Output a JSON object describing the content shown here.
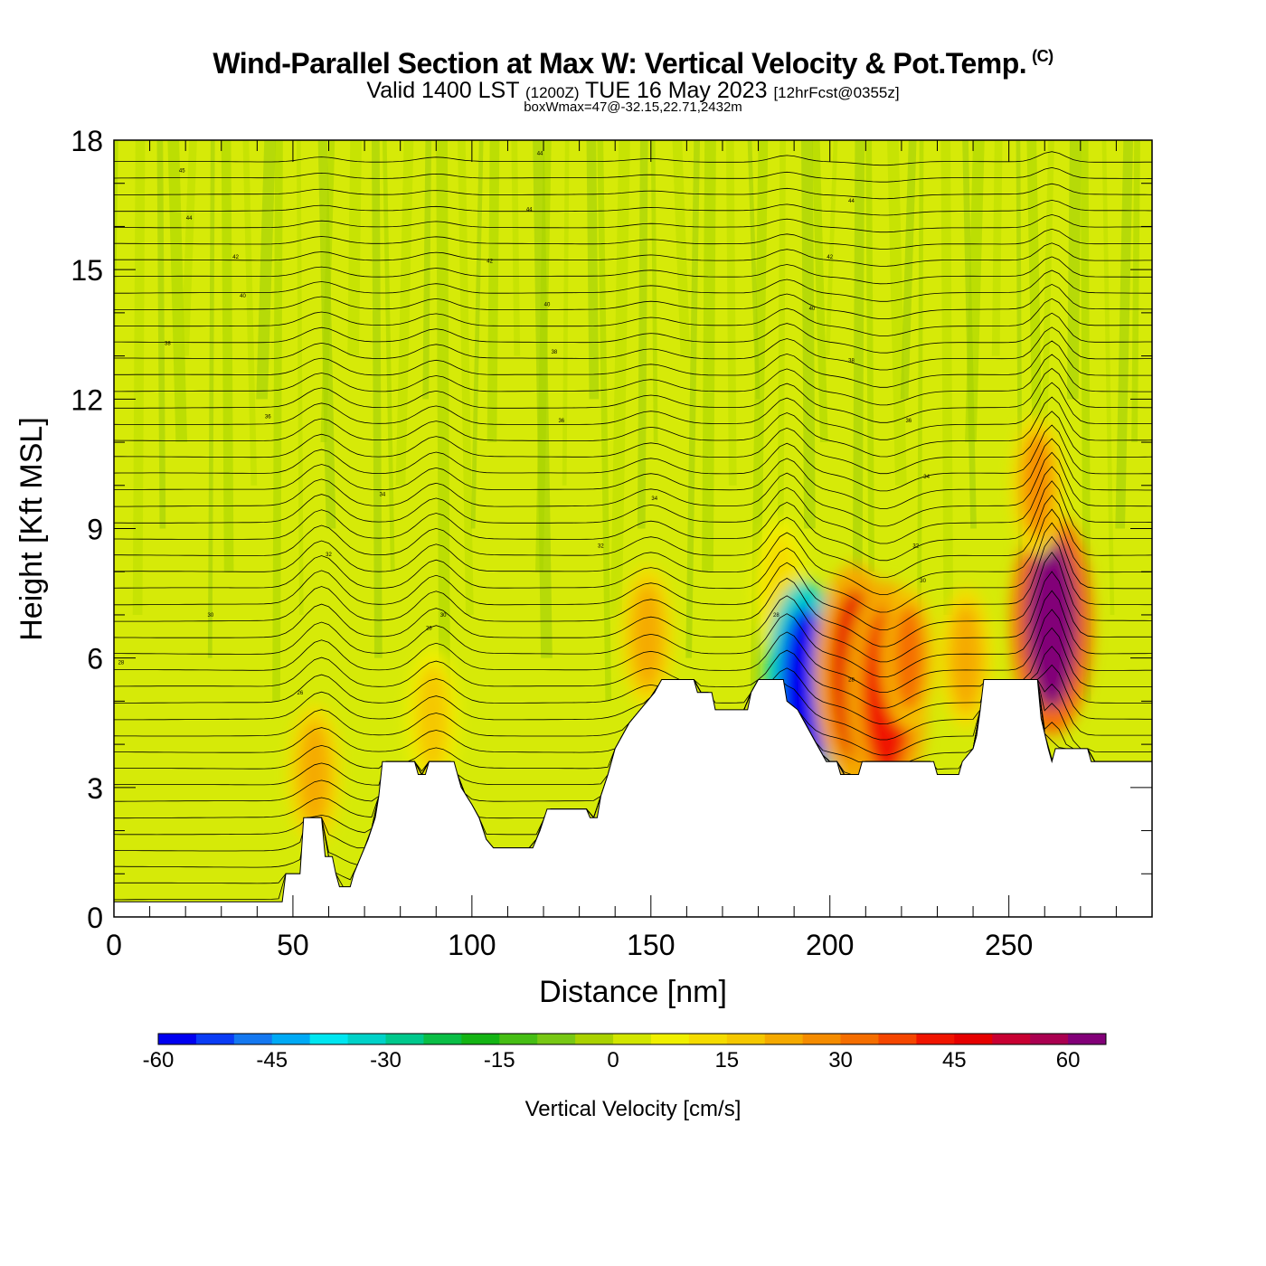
{
  "header": {
    "title_main": "Wind-Parallel Section at Max W: Vertical Velocity & Pot.Temp.",
    "title_copyright": "(C)",
    "subtitle_valid": "Valid 1400 LST",
    "subtitle_z": "(1200Z)",
    "subtitle_date": "TUE 16 May 2023",
    "subtitle_fcst": "[12hrFcst@0355z]",
    "subtitle_box": "boxWmax=47@-32.15,22.71,2432m"
  },
  "chart_data": {
    "type": "heatmap",
    "xlabel": "Distance [nm]",
    "ylabel": "Height [Kft MSL]",
    "xlim": [
      0,
      290
    ],
    "ylim": [
      0,
      18
    ],
    "x_ticks": [
      0,
      50,
      100,
      150,
      200,
      250
    ],
    "y_ticks": [
      0,
      3,
      6,
      9,
      12,
      15,
      18
    ],
    "colorbar": {
      "label": "Vertical Velocity [cm/s]",
      "range": [
        -60,
        65
      ],
      "step": 5,
      "tick_values": [
        -60,
        -45,
        -30,
        -15,
        0,
        15,
        30,
        45,
        60
      ],
      "colors": [
        "#0000f0",
        "#0a3cf5",
        "#1478f0",
        "#00aaf5",
        "#00e6f0",
        "#00d2c8",
        "#00c88c",
        "#0abe46",
        "#14b414",
        "#46be14",
        "#78c814",
        "#aad200",
        "#d2e600",
        "#f0f000",
        "#f5dc00",
        "#f5c800",
        "#f5aa00",
        "#f58c00",
        "#f56e00",
        "#f54600",
        "#f01400",
        "#e60000",
        "#c80032",
        "#aa0050",
        "#820078"
      ]
    },
    "terrain_kft": [
      [
        0,
        0.35
      ],
      [
        47,
        0.35
      ],
      [
        48,
        1.0
      ],
      [
        52,
        1.0
      ],
      [
        53,
        2.3
      ],
      [
        58,
        2.3
      ],
      [
        59,
        1.4
      ],
      [
        61,
        1.4
      ],
      [
        62,
        1.0
      ],
      [
        63,
        0.7
      ],
      [
        66,
        0.7
      ],
      [
        67,
        1.0
      ],
      [
        69,
        1.4
      ],
      [
        71,
        1.8
      ],
      [
        73,
        2.3
      ],
      [
        74,
        2.8
      ],
      [
        75,
        3.6
      ],
      [
        84,
        3.6
      ],
      [
        85,
        3.3
      ],
      [
        87,
        3.3
      ],
      [
        88,
        3.6
      ],
      [
        95,
        3.6
      ],
      [
        96,
        3.3
      ],
      [
        97,
        3.0
      ],
      [
        100,
        2.6
      ],
      [
        102,
        2.3
      ],
      [
        104,
        1.8
      ],
      [
        106,
        1.6
      ],
      [
        117,
        1.6
      ],
      [
        119,
        2.0
      ],
      [
        121,
        2.5
      ],
      [
        132,
        2.5
      ],
      [
        133,
        2.3
      ],
      [
        135,
        2.3
      ],
      [
        136,
        2.8
      ],
      [
        138,
        3.3
      ],
      [
        140,
        3.9
      ],
      [
        142,
        4.2
      ],
      [
        144,
        4.5
      ],
      [
        147,
        4.8
      ],
      [
        149,
        5.0
      ],
      [
        151,
        5.2
      ],
      [
        153,
        5.5
      ],
      [
        162,
        5.5
      ],
      [
        163,
        5.2
      ],
      [
        167,
        5.2
      ],
      [
        168,
        4.8
      ],
      [
        177,
        4.8
      ],
      [
        178,
        5.2
      ],
      [
        180,
        5.5
      ],
      [
        187,
        5.5
      ],
      [
        188,
        5.0
      ],
      [
        191,
        4.8
      ],
      [
        193,
        4.5
      ],
      [
        195,
        4.2
      ],
      [
        197,
        3.9
      ],
      [
        199,
        3.6
      ],
      [
        202,
        3.6
      ],
      [
        203,
        3.3
      ],
      [
        208,
        3.3
      ],
      [
        209,
        3.6
      ],
      [
        229,
        3.6
      ],
      [
        230,
        3.3
      ],
      [
        236,
        3.3
      ],
      [
        237,
        3.6
      ],
      [
        240,
        3.9
      ],
      [
        241,
        4.2
      ],
      [
        242,
        4.8
      ],
      [
        243,
        5.5
      ],
      [
        258,
        5.5
      ],
      [
        259,
        4.6
      ],
      [
        261,
        3.9
      ],
      [
        262,
        3.6
      ],
      [
        263,
        3.9
      ],
      [
        272,
        3.9
      ],
      [
        273,
        3.6
      ],
      [
        290,
        3.6
      ]
    ],
    "velocity_features": [
      {
        "x": 56,
        "z": 3.3,
        "w": 24
      },
      {
        "x": 89,
        "z": 4.6,
        "w": 18
      },
      {
        "x": 149,
        "z": 6.5,
        "w": 20
      },
      {
        "x": 186,
        "z": 7.6,
        "w": 14
      },
      {
        "x": 193,
        "z": 5.2,
        "w": -58
      },
      {
        "x": 207,
        "z": 5.6,
        "w": 45
      },
      {
        "x": 216,
        "z": 5.2,
        "w": 42
      },
      {
        "x": 222,
        "z": 6.0,
        "w": 30
      },
      {
        "x": 238,
        "z": 6.0,
        "w": 20
      },
      {
        "x": 262,
        "z": 6.8,
        "w": 62
      },
      {
        "x": 258,
        "z": 10.0,
        "w": 25
      }
    ],
    "theta_labels": [
      {
        "x": 19,
        "z": 17.3,
        "text": "45"
      },
      {
        "x": 119,
        "z": 17.7,
        "text": "44"
      },
      {
        "x": 21,
        "z": 16.2,
        "text": "44"
      },
      {
        "x": 116,
        "z": 16.4,
        "text": "44"
      },
      {
        "x": 206,
        "z": 16.6,
        "text": "44"
      },
      {
        "x": 34,
        "z": 15.3,
        "text": "42"
      },
      {
        "x": 105,
        "z": 15.2,
        "text": "42"
      },
      {
        "x": 200,
        "z": 15.3,
        "text": "42"
      },
      {
        "x": 36,
        "z": 14.4,
        "text": "40"
      },
      {
        "x": 121,
        "z": 14.2,
        "text": "40"
      },
      {
        "x": 195,
        "z": 14.1,
        "text": "40"
      },
      {
        "x": 15,
        "z": 13.3,
        "text": "38"
      },
      {
        "x": 123,
        "z": 13.1,
        "text": "38"
      },
      {
        "x": 206,
        "z": 12.9,
        "text": "38"
      },
      {
        "x": 43,
        "z": 11.6,
        "text": "36"
      },
      {
        "x": 125,
        "z": 11.5,
        "text": "36"
      },
      {
        "x": 222,
        "z": 11.5,
        "text": "36"
      },
      {
        "x": 75,
        "z": 9.8,
        "text": "34"
      },
      {
        "x": 151,
        "z": 9.7,
        "text": "34"
      },
      {
        "x": 227,
        "z": 10.2,
        "text": "34"
      },
      {
        "x": 60,
        "z": 8.4,
        "text": "32"
      },
      {
        "x": 136,
        "z": 8.6,
        "text": "32"
      },
      {
        "x": 224,
        "z": 8.6,
        "text": "32"
      },
      {
        "x": 92,
        "z": 7.0,
        "text": "30"
      },
      {
        "x": 27,
        "z": 7.0,
        "text": "30"
      },
      {
        "x": 226,
        "z": 7.8,
        "text": "30"
      },
      {
        "x": 88,
        "z": 6.7,
        "text": "28"
      },
      {
        "x": 185,
        "z": 7.0,
        "text": "28"
      },
      {
        "x": 2,
        "z": 5.9,
        "text": "28"
      },
      {
        "x": 206,
        "z": 5.5,
        "text": "28"
      },
      {
        "x": 52,
        "z": 5.2,
        "text": "26"
      }
    ]
  }
}
